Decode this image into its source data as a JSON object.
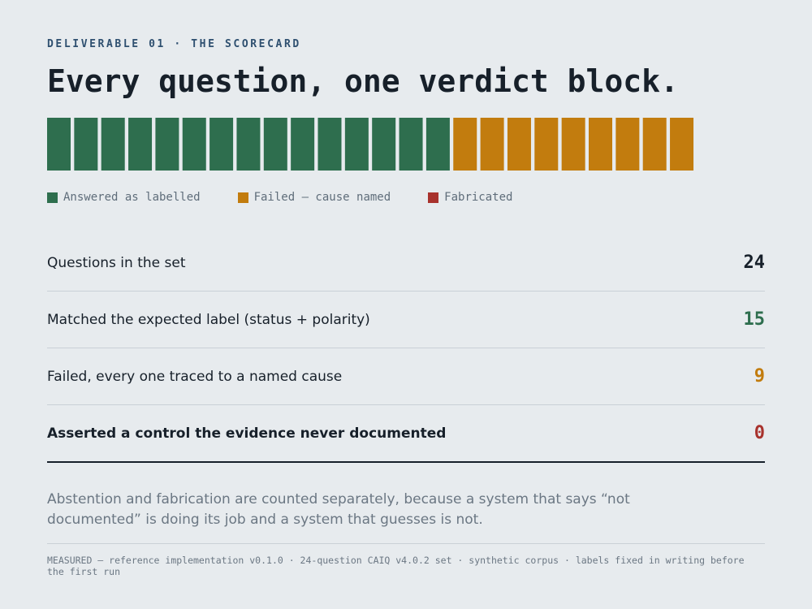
{
  "eyebrow": "DELIVERABLE 01 · THE SCORECARD",
  "title": "Every question, one verdict block.",
  "legend": [
    {
      "label": "Answered as labelled",
      "color": "#2e6e4e"
    },
    {
      "label": "Failed — cause named",
      "color": "#c27c0e"
    },
    {
      "label": "Fabricated",
      "color": "#a8322d"
    }
  ],
  "rows": [
    {
      "label": "Questions in the set",
      "value": 24,
      "color": "#17202a"
    },
    {
      "label": "Matched the expected label (status + polarity)",
      "value": 15,
      "color": "#2e6e4e"
    },
    {
      "label": "Failed, every one traced to a named cause",
      "value": 9,
      "color": "#c27c0e"
    },
    {
      "label": "Asserted a control the evidence never documented",
      "value": 0,
      "color": "#a8322d",
      "bold": true
    }
  ],
  "note": "Abstention and fabrication are counted separately, because a system that says “not documented” is doing its job and a system that guesses is not.",
  "footer": "MEASURED — reference implementation v0.1.0 · 24-question CAIQ v4.0.2 set · synthetic corpus · labels fixed in writing before the first run"
}
